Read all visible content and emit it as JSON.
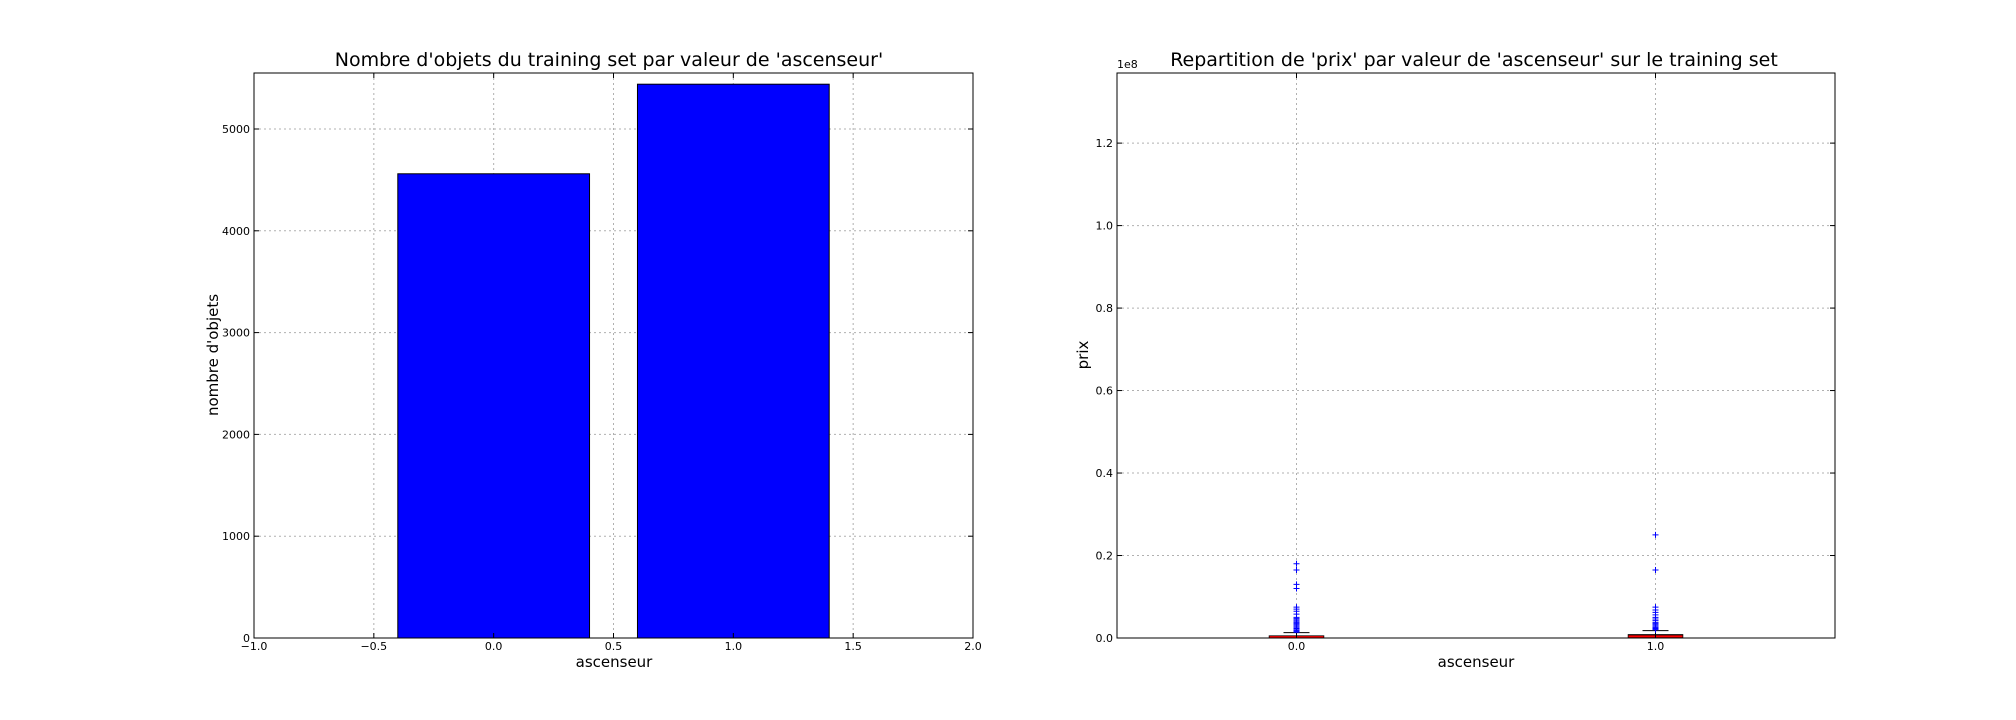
{
  "chart_data": [
    {
      "type": "bar",
      "title": "Nombre d'objets du training set par valeur de 'ascenseur'",
      "xlabel": "ascenseur",
      "ylabel": "nombre d'objets",
      "x": [
        0.0,
        1.0
      ],
      "values": [
        4560,
        5440
      ],
      "bar_width": 0.8,
      "xlim": [
        -1.0,
        2.0
      ],
      "ylim": [
        0,
        5550
      ],
      "xticks": [
        "−1.0",
        "−0.5",
        "0.0",
        "0.5",
        "1.0",
        "1.5",
        "2.0"
      ],
      "xtick_values": [
        -1.0,
        -0.5,
        0.0,
        0.5,
        1.0,
        1.5,
        2.0
      ],
      "yticks": [
        "0",
        "1000",
        "2000",
        "3000",
        "4000",
        "5000"
      ],
      "ytick_values": [
        0,
        1000,
        2000,
        3000,
        4000,
        5000
      ],
      "color": "#0000ff",
      "grid": true
    },
    {
      "type": "box",
      "title": "Repartition de 'prix' par valeur de 'ascenseur' sur le training set",
      "xlabel": "ascenseur",
      "ylabel": "prix",
      "y_offset_label": "1e8",
      "categories": [
        "0.0",
        "1.0"
      ],
      "ylim": [
        0,
        1.37
      ],
      "yticks": [
        "0.0",
        "0.2",
        "0.4",
        "0.6",
        "0.8",
        "1.0",
        "1.2"
      ],
      "ytick_values": [
        0.0,
        0.2,
        0.4,
        0.6,
        0.8,
        1.0,
        1.2
      ],
      "boxes": [
        {
          "category": "0.0",
          "q1": 0.0008,
          "median": 0.0022,
          "q3": 0.0045,
          "whisker_low": 0.0,
          "whisker_high": 0.013,
          "outliers": [
            0.18,
            0.165,
            0.13,
            0.12,
            0.075,
            0.07,
            0.065,
            0.058,
            0.05,
            0.047,
            0.044,
            0.041,
            0.038,
            0.035,
            0.032,
            0.029,
            0.026,
            0.023,
            0.02,
            0.018,
            0.016,
            0.014
          ]
        },
        {
          "category": "1.0",
          "q1": 0.0015,
          "median": 0.004,
          "q3": 0.0075,
          "whisker_low": 0.0,
          "whisker_high": 0.018,
          "outliers": [
            0.25,
            0.165,
            0.075,
            0.068,
            0.062,
            0.056,
            0.05,
            0.046,
            0.042,
            0.038,
            0.035,
            0.032,
            0.029,
            0.026,
            0.024,
            0.022,
            0.02
          ]
        }
      ],
      "box_color": "#000000",
      "median_color": "#ff0000",
      "flier_color": "#0000ff",
      "grid": true
    }
  ]
}
